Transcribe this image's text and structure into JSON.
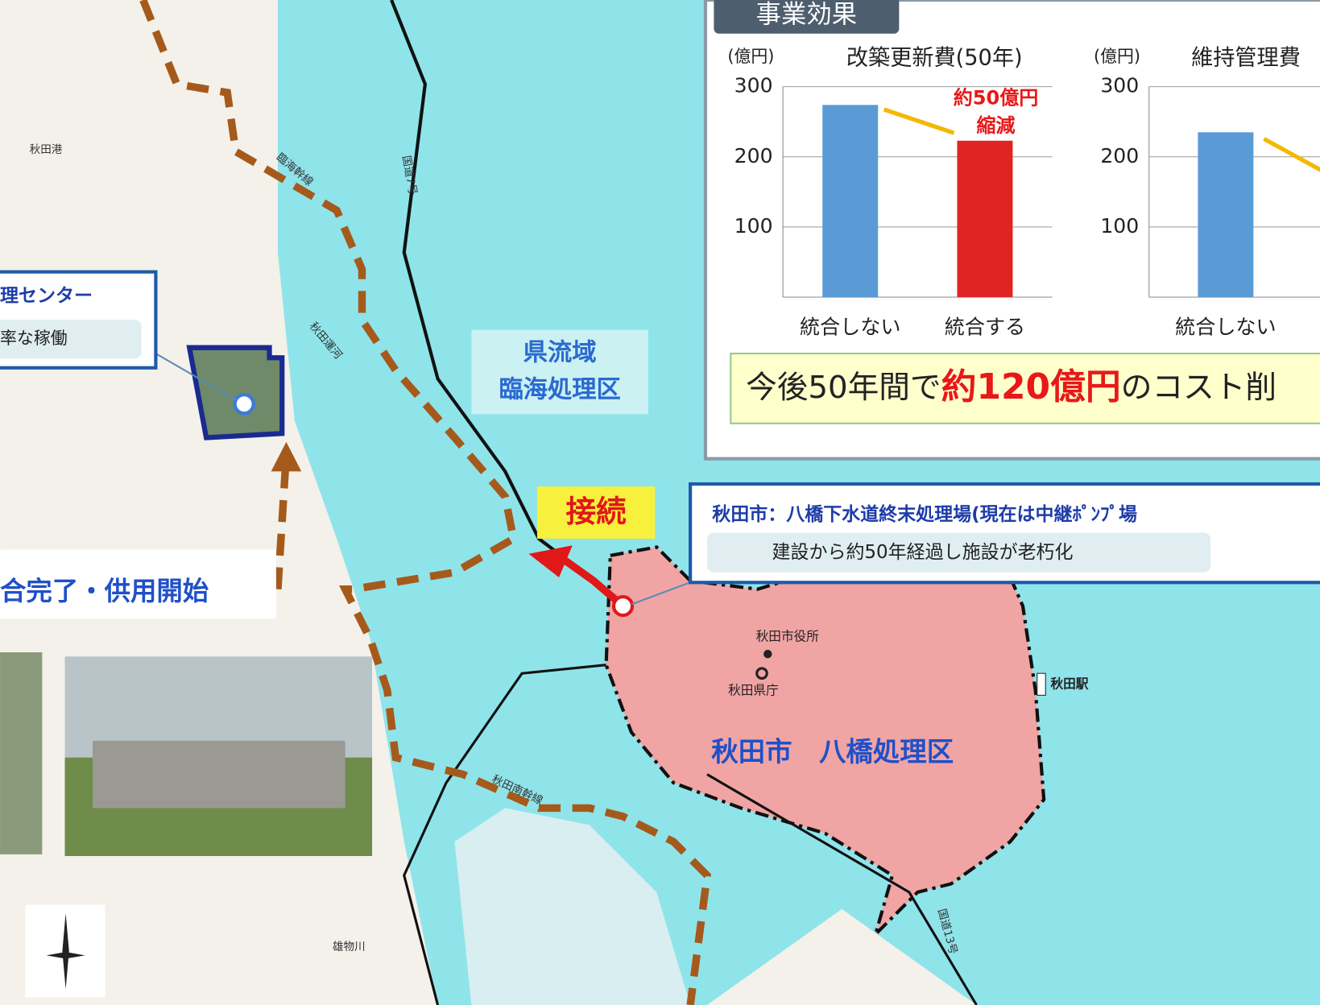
{
  "panel_title": "事業効果",
  "chart_data": [
    {
      "type": "bar",
      "title": "改築更新費(50年)",
      "y_label": "(億円)",
      "categories": [
        "統合しない",
        "統合する"
      ],
      "values": [
        274,
        223
      ],
      "colors": [
        "#5b9bd5",
        "#e02424"
      ],
      "ylim": [
        0,
        300
      ],
      "yticks": [
        100,
        200,
        300
      ],
      "grid": true,
      "annotation": [
        "約50億円",
        "縮減"
      ]
    },
    {
      "type": "bar",
      "title": "維持管理費",
      "y_label": "(億円)",
      "categories": [
        "統合しない"
      ],
      "values": [
        235
      ],
      "colors": [
        "#5b9bd5"
      ],
      "ylim": [
        0,
        300
      ],
      "yticks": [
        100,
        200,
        300
      ],
      "grid": true
    }
  ],
  "summary": {
    "before": "今後50年間で",
    "amount": "約120億円",
    "after": "のコスト削"
  },
  "left_box": {
    "title": "理センター",
    "note": "率な稼働"
  },
  "completion": "合完了・供用開始",
  "district": [
    "県流域",
    "臨海処理区"
  ],
  "connect": "接続",
  "right_box": {
    "title": "秋田市：八橋下水道終末処理場(現在は中継ﾎﾟﾝﾌﾟ場",
    "note": "建設から約50年経過し施設が老朽化"
  },
  "map_labels": {
    "yabase": "秋田市　八橋処理区",
    "city_hall": "秋田市役所",
    "pref_office": "秋田県庁",
    "station": "秋田駅",
    "port": "秋田港",
    "route7": "国道7号",
    "route13": "国道13号",
    "south_main": "秋田南幹線",
    "rinkai_main": "臨海幹線",
    "canal": "秋田運河",
    "river": "雄物川"
  }
}
